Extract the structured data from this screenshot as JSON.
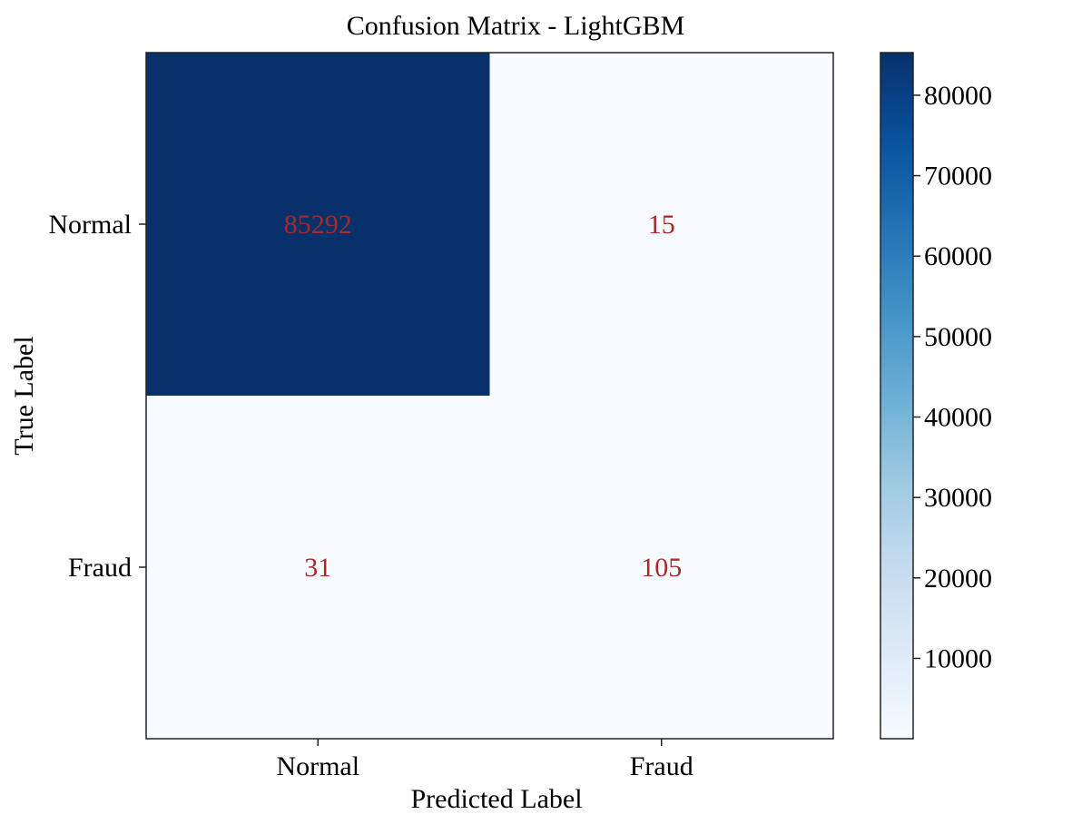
{
  "chart_data": {
    "type": "heatmap",
    "title": "Confusion Matrix - LightGBM",
    "xlabel": "Predicted Label",
    "ylabel": "True Label",
    "x_categories": [
      "Normal",
      "Fraud"
    ],
    "y_categories": [
      "Normal",
      "Fraud"
    ],
    "values": [
      [
        85292,
        15
      ],
      [
        31,
        105
      ]
    ],
    "colorscale": "Blues",
    "color_min": "#f7fbff",
    "color_max": "#08306b",
    "annotation_color": "#a52a2a",
    "colorbar": {
      "ticks": [
        10000,
        20000,
        30000,
        40000,
        50000,
        60000,
        70000,
        80000
      ],
      "tick_labels": [
        "10000",
        "20000",
        "30000",
        "40000",
        "50000",
        "60000",
        "70000",
        "80000"
      ],
      "range": [
        15,
        85292
      ]
    }
  }
}
